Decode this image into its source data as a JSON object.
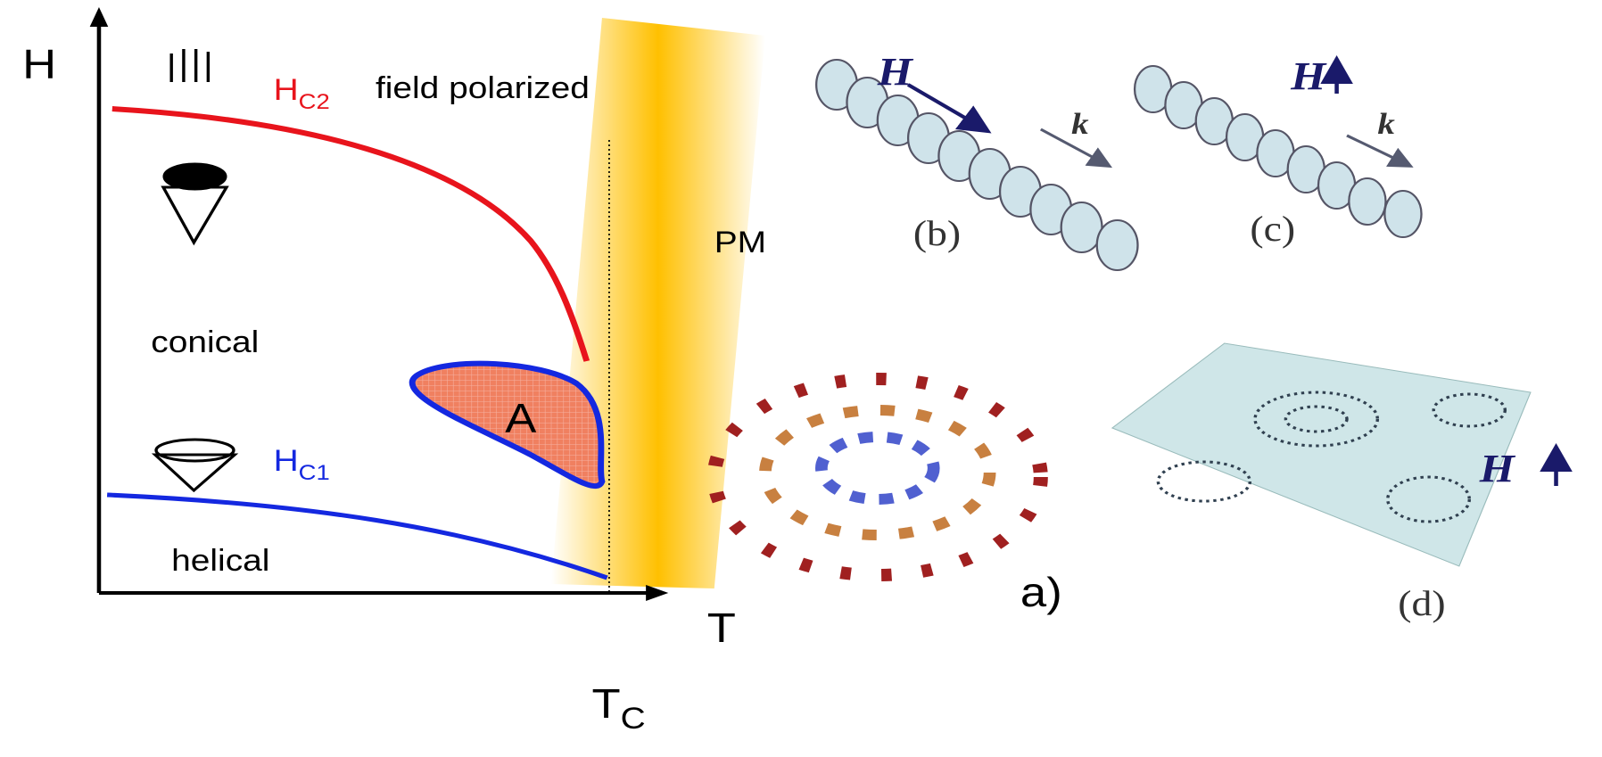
{
  "axes": {
    "y_label": "H",
    "x_label": "T",
    "tc": {
      "base": "T",
      "sub": "C"
    }
  },
  "curves": {
    "hc2": {
      "base": "H",
      "sub": "C2"
    },
    "hc1": {
      "base": "H",
      "sub": "C1"
    }
  },
  "regions": {
    "field_polarized": "field polarized",
    "conical": "conical",
    "helical": "helical",
    "a_phase": "A",
    "pm": "PM"
  },
  "panels": {
    "a": "a)",
    "b": "(b)",
    "c": "(c)",
    "d": "(d)"
  },
  "panel_labels": {
    "b_field": "H",
    "b_k": "k",
    "c_field": "H",
    "c_k": "k",
    "d_field": "H"
  }
}
